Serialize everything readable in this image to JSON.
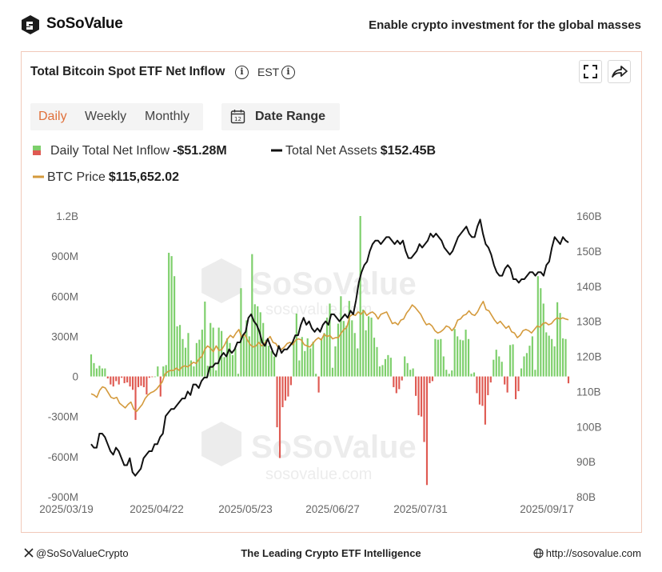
{
  "header": {
    "brand": "SoSoValue",
    "tagline": "Enable crypto investment for the global masses"
  },
  "card": {
    "title": "Total Bitcoin Spot ETF Net Inflow",
    "timezone": "EST",
    "tabs": [
      "Daily",
      "Weekly",
      "Monthly"
    ],
    "active_tab": "Daily",
    "date_range_label": "Date Range",
    "cal_day": "12"
  },
  "legend": {
    "inflow_label": "Daily Total Net Inflow",
    "inflow_value": "-$51.28M",
    "assets_label": "Total Net Assets",
    "assets_value": "$152.45B",
    "price_label": "BTC Price",
    "price_value": "$115,652.02"
  },
  "watermark": {
    "brand": "SoSoValue",
    "url1": "sosovalue.com",
    "url2": "sosovalue.com"
  },
  "footer": {
    "handle": "@SoSoValueCrypto",
    "center": "The Leading Crypto ETF Intelligence",
    "url": "http://sosovalue.com"
  },
  "colors": {
    "positive": "#7dcf6b",
    "negative": "#df5a52",
    "assets_line": "#111111",
    "price_line": "#d49a3c",
    "accent": "#e0703a"
  },
  "chart_data": {
    "type": "bar",
    "title": "",
    "x_ticks": [
      "2025/03/19",
      "2025/04/22",
      "2025/05/23",
      "2025/06/27",
      "2025/07/31",
      "2025/09/17"
    ],
    "y_left_ticks": [
      "1.2B",
      "900M",
      "600M",
      "300M",
      "0",
      "-300M",
      "-600M",
      "-900M"
    ],
    "y_left_range": [
      -900,
      1200
    ],
    "y_left_unit": "million USD",
    "y_right_ticks": [
      "160B",
      "150B",
      "140B",
      "130B",
      "120B",
      "110B",
      "100B",
      "90B",
      "80B"
    ],
    "y_right_range": [
      80,
      160
    ],
    "y_right_unit": "billion USD",
    "series": [
      {
        "name": "Daily Total Net Inflow",
        "kind": "bar",
        "values": [
          165,
          100,
          60,
          80,
          60,
          60,
          -15,
          -60,
          -75,
          -35,
          -60,
          -10,
          -50,
          -45,
          -75,
          -100,
          -325,
          -80,
          -70,
          -80,
          -135,
          -10,
          -5,
          0,
          75,
          -150,
          75,
          85,
          925,
          900,
          750,
          375,
          385,
          280,
          215,
          325,
          120,
          75,
          250,
          275,
          350,
          560,
          80,
          400,
          365,
          45,
          365,
          340,
          145,
          285,
          250,
          160,
          210,
          20,
          660,
          300,
          420,
          300,
          915,
          540,
          525,
          480,
          400,
          275,
          230,
          190,
          150,
          -380,
          -610,
          -230,
          -180,
          -150,
          -65,
          265,
          470,
          120,
          295,
          190,
          285,
          210,
          260,
          20,
          -120,
          285,
          325,
          440,
          545,
          65,
          225,
          395,
          600,
          415,
          380,
          565,
          420,
          325,
          210,
          1200,
          500,
          345,
          450,
          440,
          290,
          220,
          75,
          85,
          130,
          160,
          140,
          -80,
          -125,
          -95,
          -30,
          150,
          100,
          50,
          60,
          -145,
          -290,
          -300,
          -490,
          -812,
          -50,
          -35,
          280,
          275,
          280,
          150,
          50,
          20,
          45,
          355,
          300,
          275,
          270,
          350,
          280,
          20,
          30,
          -125,
          -210,
          -220,
          -360,
          -140,
          -45,
          125,
          200,
          150,
          110,
          -60,
          -120,
          235,
          240,
          -170,
          -110,
          60,
          150,
          175,
          230,
          300,
          50,
          750,
          660,
          545,
          330,
          305,
          280,
          225,
          555,
          475,
          285,
          280,
          -51.28
        ]
      },
      {
        "name": "Total Net Assets",
        "kind": "line",
        "axis": "right",
        "values": [
          95,
          94,
          94,
          98,
          98,
          97,
          95,
          93,
          92,
          94,
          93,
          91,
          89,
          89,
          91,
          87,
          86,
          87,
          88,
          91,
          92,
          93,
          93,
          95,
          95,
          97,
          98,
          103,
          104,
          105,
          105,
          106,
          107,
          108,
          108,
          110,
          109,
          112,
          112,
          111,
          113,
          114,
          114,
          117,
          117,
          118,
          118,
          120,
          121,
          120,
          122,
          121,
          122,
          124,
          124,
          126,
          127,
          131,
          132,
          130,
          129,
          127,
          124,
          123,
          125,
          123,
          121,
          120,
          123,
          121,
          122,
          122,
          123,
          124,
          126,
          126,
          129,
          131,
          129,
          130,
          128,
          127,
          128,
          127,
          129,
          130,
          129,
          132,
          132,
          131,
          130,
          131,
          132,
          131,
          133,
          132,
          136,
          141,
          144,
          146,
          147,
          150,
          152,
          153,
          153,
          152,
          153,
          154,
          154,
          153,
          152,
          153,
          152,
          153,
          150,
          148,
          148,
          149,
          150,
          152,
          151,
          152,
          153,
          155,
          154,
          155,
          154,
          153,
          151,
          150,
          149,
          150,
          152,
          154,
          155,
          156,
          157,
          155,
          154,
          154,
          157,
          159,
          155,
          152,
          151,
          149,
          146,
          144,
          143,
          143,
          145,
          146,
          145,
          142,
          142,
          141,
          142,
          142,
          143,
          144,
          144,
          143,
          144,
          144,
          143,
          146,
          147,
          151,
          154,
          153,
          152,
          154,
          153,
          152.45
        ]
      },
      {
        "name": "BTC Price",
        "kind": "line",
        "values": [
          84000,
          83500,
          82500,
          85500,
          87000,
          86500,
          84500,
          82500,
          82000,
          82500,
          80000,
          79000,
          78000,
          79500,
          80500,
          77500,
          76500,
          78000,
          79500,
          82000,
          83500,
          84500,
          85000,
          86000,
          87500,
          89000,
          92500,
          93500,
          94000,
          94000,
          95000,
          94000,
          95500,
          96000,
          95500,
          96500,
          97500,
          97000,
          99000,
          100000,
          103000,
          104500,
          103500,
          102000,
          104500,
          102500,
          103000,
          105000,
          107500,
          109000,
          108000,
          110000,
          111500,
          108000,
          109500,
          107000,
          105000,
          104000,
          104500,
          106000,
          104500,
          105500,
          107000,
          108500,
          106000,
          105500,
          103500,
          103000,
          104000,
          105500,
          106000,
          105000,
          107000,
          107500,
          107000,
          105000,
          104500,
          104000,
          105500,
          107000,
          108000,
          107000,
          109500,
          108500,
          109000,
          107500,
          108000,
          108000,
          110000,
          111500,
          112500,
          117000,
          118000,
          117500,
          119000,
          118000,
          119500,
          117500,
          118500,
          119000,
          118000,
          116000,
          118000,
          118500,
          119000,
          116500,
          114000,
          114500,
          113500,
          115500,
          116000,
          118500,
          120000,
          122000,
          121000,
          119500,
          118000,
          115500,
          113500,
          114000,
          113000,
          111000,
          110000,
          110500,
          111500,
          113000,
          112500,
          111000,
          112500,
          115500,
          116000,
          117500,
          118000,
          119500,
          118000,
          117500,
          119000,
          121500,
          123500,
          120000,
          119500,
          117500,
          115500,
          114000,
          115000,
          113500,
          112000,
          113000,
          110500,
          110000,
          108000,
          109000,
          111000,
          111500,
          111000,
          110000,
          111500,
          113000,
          112500,
          114000,
          114500,
          113500,
          114000,
          115500,
          116500,
          116000,
          116500,
          116000,
          115652.02
        ]
      }
    ],
    "grid": false,
    "legend_position": "top-left"
  }
}
